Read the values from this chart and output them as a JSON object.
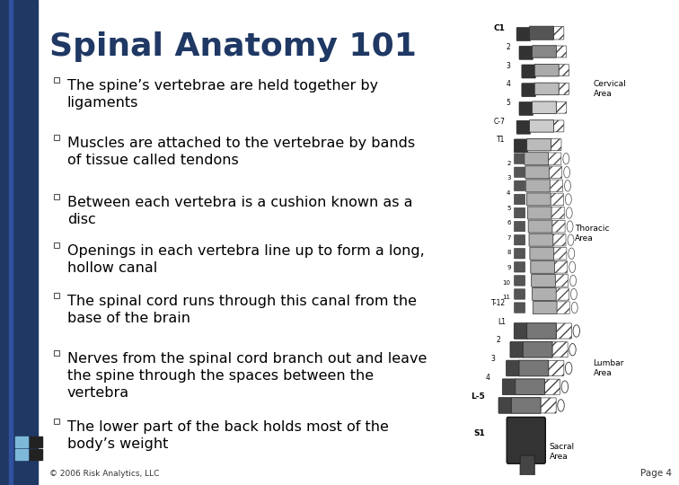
{
  "title": "Spinal Anatomy 101",
  "title_color": "#1F3864",
  "title_fontsize": 26,
  "bullet_points": [
    "The spine’s vertebrae are held together by\nligaments",
    "Muscles are attached to the vertebrae by bands\nof tissue called tendons",
    "Between each vertebra is a cushion known as a\ndisc",
    "Openings in each vertebra line up to form a long,\nhollow canal",
    "The spinal cord runs through this canal from the\nbase of the brain",
    "Nerves from the spinal cord branch out and leave\nthe spine through the spaces between the\nvertebra",
    "The lower part of the back holds most of the\nbody’s weight"
  ],
  "bullet_fontsize": 11.5,
  "text_color": "#000000",
  "background_color": "#FFFFFF",
  "left_bar_color": "#1F3864",
  "footer_text": "© 2006 Risk Analytics, LLC",
  "page_text": "Page 4",
  "bullet_color": "#333377"
}
